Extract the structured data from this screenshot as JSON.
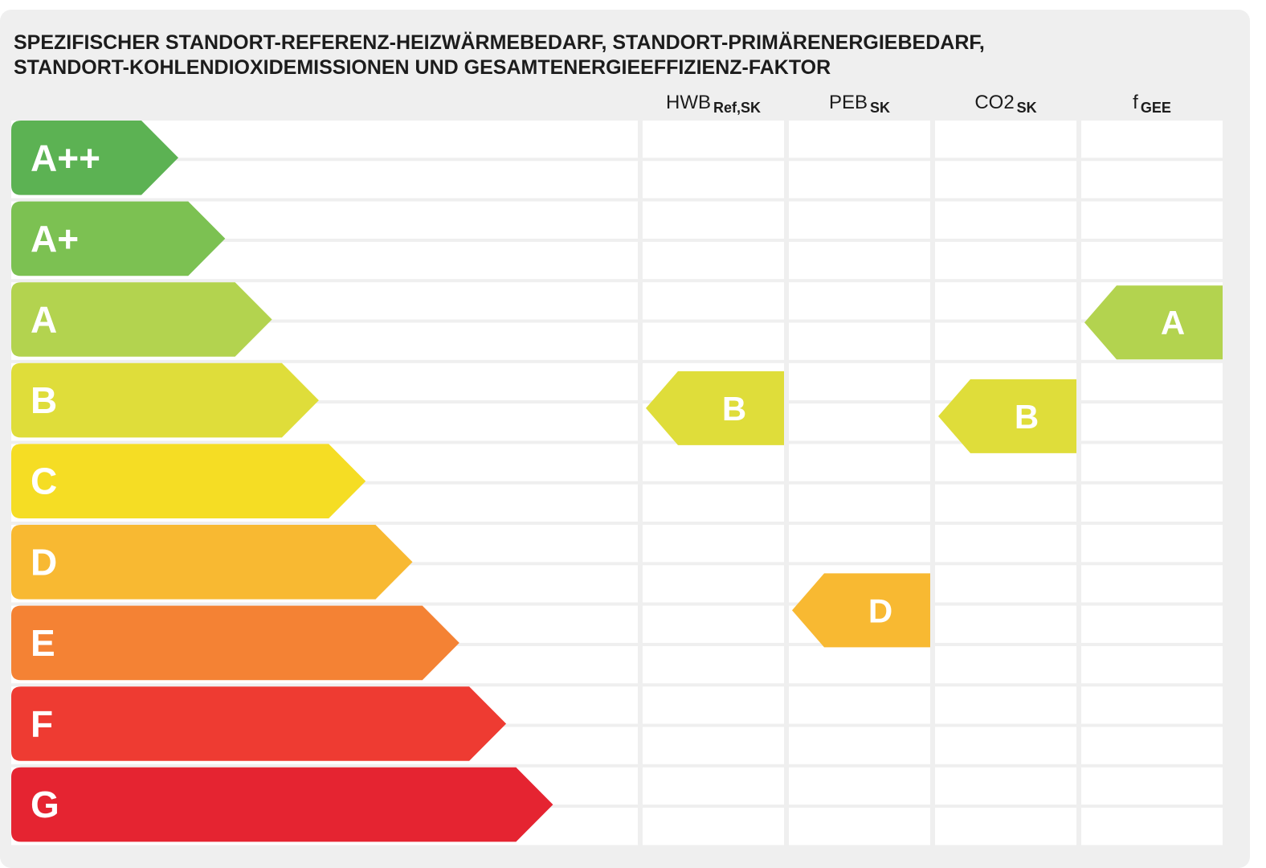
{
  "title": {
    "line1": "SPEZIFISCHER STANDORT-REFERENZ-HEIZWÄRMEBEDARF, STANDORT-PRIMÄRENERGIEBEDARF,",
    "line2": "STANDORT-KOHLENDIOXIDEMISSIONEN UND GESAMTENERGIEEFFIZIENZ-FAKTOR"
  },
  "columns": [
    {
      "label": "HWB",
      "sub": "Ref,SK"
    },
    {
      "label": "PEB",
      "sub": "SK"
    },
    {
      "label": "CO2",
      "sub": "SK"
    },
    {
      "label": "f",
      "sub": "GEE"
    }
  ],
  "scale": [
    {
      "label": "A++",
      "color": "#5cb253"
    },
    {
      "label": "A+",
      "color": "#7cc152"
    },
    {
      "label": "A",
      "color": "#b3d34f"
    },
    {
      "label": "B",
      "color": "#dfdd3a"
    },
    {
      "label": "C",
      "color": "#f5dd24"
    },
    {
      "label": "D",
      "color": "#f8b932"
    },
    {
      "label": "E",
      "color": "#f48234"
    },
    {
      "label": "F",
      "color": "#ee3b32"
    },
    {
      "label": "G",
      "color": "#e52431"
    }
  ],
  "ratings": [
    {
      "column": "HWB",
      "label": "B",
      "class_index": 3,
      "color": "#dfdd3a"
    },
    {
      "column": "PEB",
      "label": "D",
      "class_index": 5,
      "color": "#f8b932"
    },
    {
      "column": "CO2",
      "label": "B",
      "class_index": 3,
      "color": "#dfdd3a"
    },
    {
      "column": "f",
      "label": "A",
      "class_index": 2,
      "color": "#b3d34f"
    }
  ]
}
